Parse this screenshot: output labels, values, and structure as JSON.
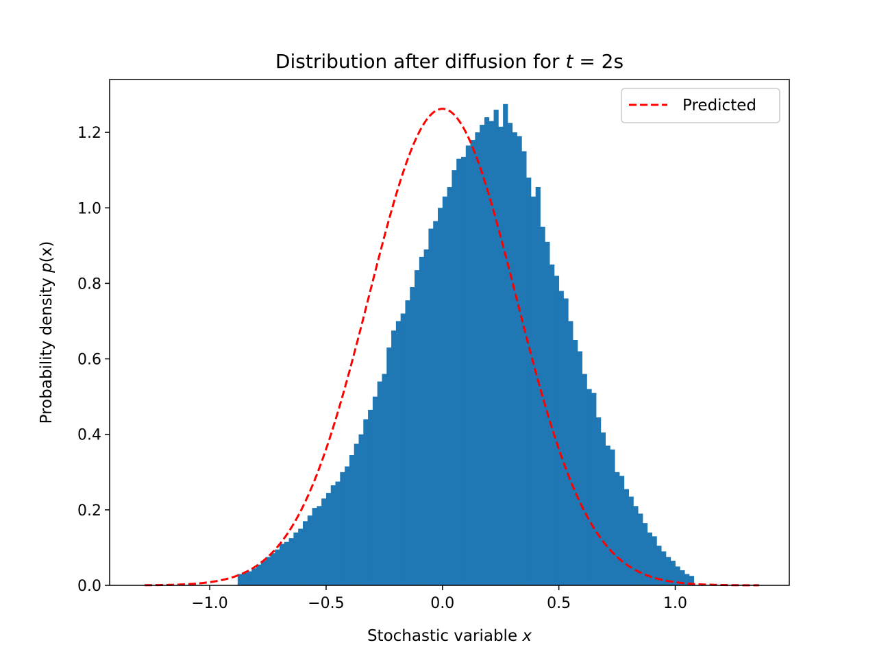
{
  "chart_data": {
    "type": "bar",
    "title": {
      "prefix": "Distribution after diffusion for ",
      "var": "t",
      "suffix": " = 2s"
    },
    "xlabel": {
      "prefix": "Stochastic variable ",
      "var": "x",
      "suffix": ""
    },
    "ylabel": {
      "prefix": "Probability density ",
      "var": "p",
      "suffix": "(x)"
    },
    "xlim": [
      -1.43,
      1.49
    ],
    "ylim": [
      0.0,
      1.34
    ],
    "xticks": [
      -1.0,
      -0.5,
      0.0,
      0.5,
      1.0
    ],
    "xtick_labels": [
      "−1.0",
      "−0.5",
      "0.0",
      "0.5",
      "1.0"
    ],
    "yticks": [
      0.0,
      0.2,
      0.4,
      0.6,
      0.8,
      1.0,
      1.2
    ],
    "ytick_labels": [
      "0.0",
      "0.2",
      "0.4",
      "0.6",
      "0.8",
      "1.0",
      "1.2"
    ],
    "legend": {
      "position": "upper right",
      "entries": [
        "Predicted"
      ]
    },
    "grid": false,
    "histogram": {
      "bin_width": 0.02,
      "start": -0.88,
      "color": "#1f77b4",
      "values": [
        0.03,
        0.033,
        0.037,
        0.045,
        0.055,
        0.065,
        0.075,
        0.085,
        0.095,
        0.11,
        0.115,
        0.125,
        0.14,
        0.15,
        0.17,
        0.185,
        0.205,
        0.21,
        0.23,
        0.245,
        0.265,
        0.275,
        0.3,
        0.315,
        0.345,
        0.375,
        0.4,
        0.44,
        0.465,
        0.5,
        0.54,
        0.56,
        0.63,
        0.675,
        0.7,
        0.72,
        0.755,
        0.79,
        0.835,
        0.87,
        0.89,
        0.945,
        0.965,
        1.0,
        1.03,
        1.055,
        1.1,
        1.13,
        1.135,
        1.165,
        1.18,
        1.2,
        1.22,
        1.24,
        1.23,
        1.26,
        1.215,
        1.275,
        1.225,
        1.2,
        1.19,
        1.15,
        1.08,
        1.03,
        1.055,
        0.95,
        0.91,
        0.85,
        0.82,
        0.78,
        0.76,
        0.7,
        0.65,
        0.62,
        0.56,
        0.52,
        0.51,
        0.445,
        0.405,
        0.37,
        0.36,
        0.3,
        0.29,
        0.255,
        0.235,
        0.21,
        0.19,
        0.165,
        0.14,
        0.13,
        0.105,
        0.09,
        0.075,
        0.065,
        0.05,
        0.04,
        0.03,
        0.025
      ]
    },
    "series": [
      {
        "name": "Predicted",
        "type": "line",
        "style": "dashed",
        "color": "#ff0000",
        "function": "gaussian",
        "mean": 0.0,
        "sigma": 0.316,
        "x_range": [
          -1.28,
          1.36
        ]
      }
    ]
  }
}
